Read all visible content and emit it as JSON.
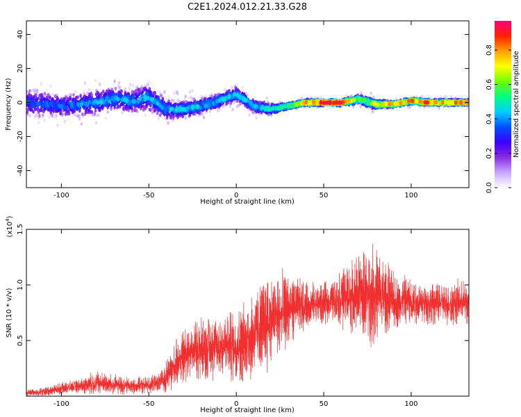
{
  "title": "C2E1.2024.012.21.33.G28",
  "chart_data": [
    {
      "type": "heatmap",
      "xlabel": "Height of straight line (km)",
      "ylabel": "Frequency (Hz)",
      "xlim": [
        -120,
        133
      ],
      "ylim": [
        -50,
        48
      ],
      "xticks": [
        -100,
        -50,
        0,
        50,
        100
      ],
      "yticks": [
        -40,
        -20,
        0,
        20,
        40
      ],
      "colorbar": {
        "label": "Normalized spectral amplitude",
        "range": [
          0,
          0.97
        ],
        "ticks": [
          0.0,
          0.2,
          0.4,
          0.6,
          0.8
        ],
        "colormap": [
          "#ffffff",
          "#c9a6ff",
          "#8a2be2",
          "#3a00ff",
          "#0050ff",
          "#00d0ff",
          "#00ff80",
          "#70ff00",
          "#ffff00",
          "#ffa000",
          "#ff2000",
          "#ff0080"
        ]
      },
      "ridge": [
        {
          "x": -120,
          "y": 0
        },
        {
          "x": -110,
          "y": -1
        },
        {
          "x": -100,
          "y": -2
        },
        {
          "x": -90,
          "y": -1
        },
        {
          "x": -80,
          "y": 0
        },
        {
          "x": -70,
          "y": 2
        },
        {
          "x": -60,
          "y": 1
        },
        {
          "x": -50,
          "y": 3
        },
        {
          "x": -40,
          "y": -4
        },
        {
          "x": -30,
          "y": -4
        },
        {
          "x": -20,
          "y": -2
        },
        {
          "x": -10,
          "y": 1
        },
        {
          "x": 0,
          "y": 5
        },
        {
          "x": 10,
          "y": -2
        },
        {
          "x": 20,
          "y": -4
        },
        {
          "x": 30,
          "y": -2
        },
        {
          "x": 40,
          "y": 0
        },
        {
          "x": 50,
          "y": 0
        },
        {
          "x": 60,
          "y": 0
        },
        {
          "x": 70,
          "y": 2
        },
        {
          "x": 80,
          "y": -1
        },
        {
          "x": 90,
          "y": -1
        },
        {
          "x": 100,
          "y": 1
        },
        {
          "x": 110,
          "y": 0
        },
        {
          "x": 120,
          "y": 0
        },
        {
          "x": 133,
          "y": 0
        }
      ],
      "spread": [
        {
          "x": -120,
          "y": 14
        },
        {
          "x": -100,
          "y": 10
        },
        {
          "x": -80,
          "y": 12
        },
        {
          "x": -60,
          "y": 11
        },
        {
          "x": -50,
          "y": 13
        },
        {
          "x": -40,
          "y": 9
        },
        {
          "x": -20,
          "y": 8
        },
        {
          "x": 0,
          "y": 7
        },
        {
          "x": 20,
          "y": 6
        },
        {
          "x": 30,
          "y": 3
        },
        {
          "x": 60,
          "y": 3
        },
        {
          "x": 75,
          "y": 5
        },
        {
          "x": 90,
          "y": 3
        },
        {
          "x": 133,
          "y": 3
        }
      ],
      "peak_amplitude": [
        {
          "x": -120,
          "y": 0.35
        },
        {
          "x": -80,
          "y": 0.42
        },
        {
          "x": -40,
          "y": 0.45
        },
        {
          "x": 0,
          "y": 0.45
        },
        {
          "x": 25,
          "y": 0.5
        },
        {
          "x": 40,
          "y": 0.82
        },
        {
          "x": 50,
          "y": 0.95
        },
        {
          "x": 60,
          "y": 0.9
        },
        {
          "x": 70,
          "y": 0.6
        },
        {
          "x": 80,
          "y": 0.7
        },
        {
          "x": 100,
          "y": 0.85
        },
        {
          "x": 133,
          "y": 0.8
        }
      ]
    },
    {
      "type": "line",
      "xlabel": "Height of straight line (km)",
      "ylabel": "SNR (10 * v/v)",
      "yunit": "(x10",
      "yexp": "4",
      "y_multiplier": 10000,
      "xlim": [
        -120,
        133
      ],
      "ylim": [
        0,
        1.5
      ],
      "xticks": [
        -100,
        -50,
        0,
        50,
        100
      ],
      "yticks": [
        0.5,
        1.0,
        1.5
      ],
      "ytick_labels": [
        "0.5",
        "1.0",
        "1.5"
      ],
      "line_color": "#f03030",
      "series": [
        {
          "envelope_mean": [
            {
              "x": -120,
              "y": 0.03
            },
            {
              "x": -110,
              "y": 0.04
            },
            {
              "x": -100,
              "y": 0.07
            },
            {
              "x": -90,
              "y": 0.09
            },
            {
              "x": -80,
              "y": 0.12
            },
            {
              "x": -70,
              "y": 0.1
            },
            {
              "x": -60,
              "y": 0.09
            },
            {
              "x": -50,
              "y": 0.1
            },
            {
              "x": -42,
              "y": 0.13
            },
            {
              "x": -35,
              "y": 0.28
            },
            {
              "x": -28,
              "y": 0.4
            },
            {
              "x": -20,
              "y": 0.43
            },
            {
              "x": -10,
              "y": 0.45
            },
            {
              "x": 0,
              "y": 0.45
            },
            {
              "x": 10,
              "y": 0.55
            },
            {
              "x": 18,
              "y": 0.68
            },
            {
              "x": 25,
              "y": 0.72
            },
            {
              "x": 30,
              "y": 0.78
            },
            {
              "x": 40,
              "y": 0.82
            },
            {
              "x": 50,
              "y": 0.83
            },
            {
              "x": 60,
              "y": 0.88
            },
            {
              "x": 70,
              "y": 0.92
            },
            {
              "x": 80,
              "y": 0.92
            },
            {
              "x": 90,
              "y": 0.85
            },
            {
              "x": 100,
              "y": 0.85
            },
            {
              "x": 110,
              "y": 0.83
            },
            {
              "x": 120,
              "y": 0.83
            },
            {
              "x": 133,
              "y": 0.84
            }
          ],
          "envelope_amplitude": [
            {
              "x": -120,
              "y": 0.03
            },
            {
              "x": -90,
              "y": 0.06
            },
            {
              "x": -80,
              "y": 0.11
            },
            {
              "x": -60,
              "y": 0.07
            },
            {
              "x": -45,
              "y": 0.08
            },
            {
              "x": -35,
              "y": 0.2
            },
            {
              "x": -20,
              "y": 0.28
            },
            {
              "x": 0,
              "y": 0.32
            },
            {
              "x": 15,
              "y": 0.45
            },
            {
              "x": 25,
              "y": 0.38
            },
            {
              "x": 40,
              "y": 0.2
            },
            {
              "x": 55,
              "y": 0.18
            },
            {
              "x": 65,
              "y": 0.32
            },
            {
              "x": 80,
              "y": 0.45
            },
            {
              "x": 90,
              "y": 0.25
            },
            {
              "x": 110,
              "y": 0.18
            },
            {
              "x": 133,
              "y": 0.2
            }
          ]
        }
      ]
    }
  ]
}
